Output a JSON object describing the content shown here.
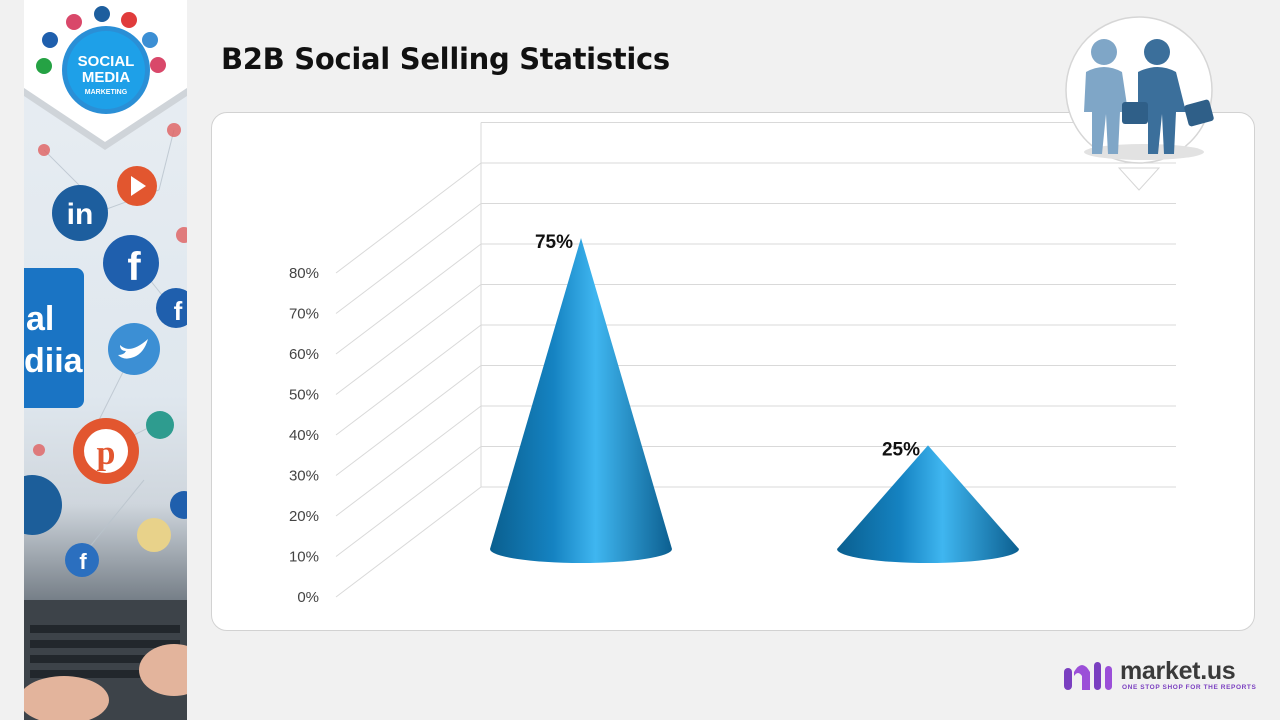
{
  "page": {
    "title": "B2B Social Selling Statistics"
  },
  "left_banner": {
    "badge_line1": "SOCIAL",
    "badge_line2": "MEDIA",
    "badge_line3": "MARKETING",
    "screen_text_1": "al",
    "screen_text_2": "diia"
  },
  "brand": {
    "name": "market.us",
    "tagline": "ONE STOP SHOP FOR THE REPORTS"
  },
  "colors": {
    "cone_dark": "#0a5f8f",
    "cone_mid": "#1583c2",
    "cone_light": "#3fb6f0",
    "grid": "#d9d9d9",
    "brand_purple": "#7a3fc0"
  },
  "chart_data": {
    "type": "bar",
    "bar_shape": "3d-cone",
    "categories": [
      "",
      ""
    ],
    "values": [
      75,
      25
    ],
    "data_labels": [
      "75%",
      "25%"
    ],
    "y_ticks": [
      "0%",
      "10%",
      "20%",
      "30%",
      "40%",
      "50%",
      "60%",
      "70%",
      "80%"
    ],
    "ylim": [
      0,
      80
    ],
    "grid": true,
    "legend": "none",
    "title": "",
    "xlabel": "",
    "ylabel": ""
  }
}
